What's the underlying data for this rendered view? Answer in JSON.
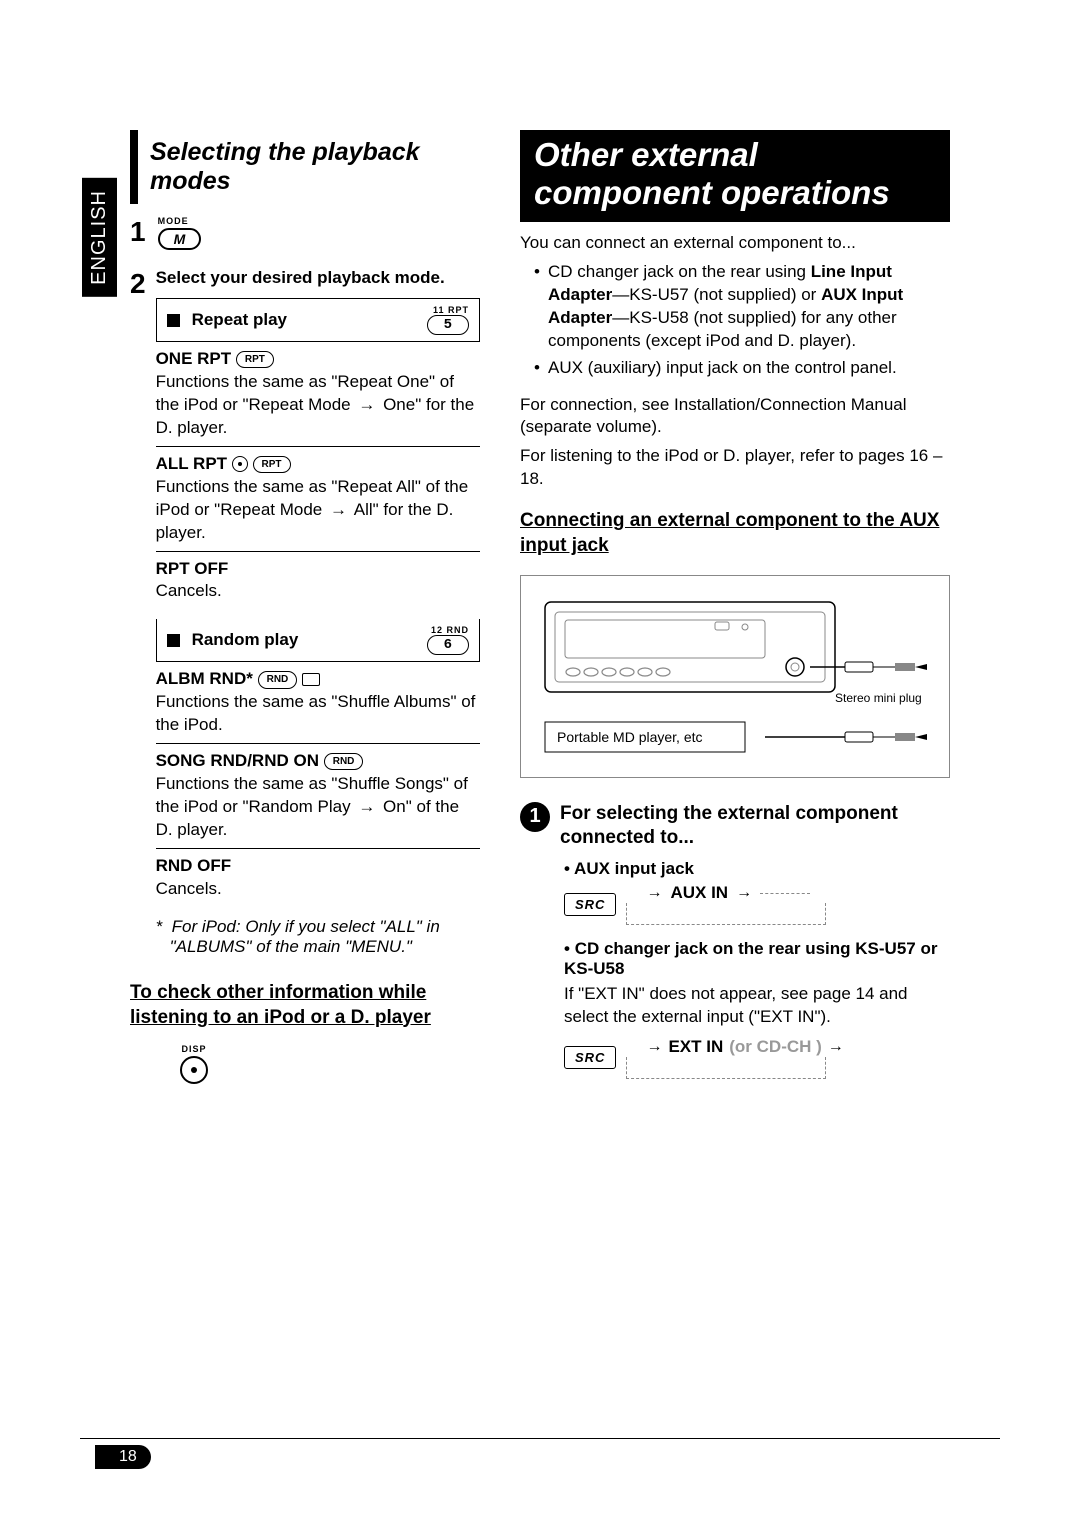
{
  "lang_tab": "ENGLISH",
  "page_number": "18",
  "left": {
    "section_title": "Selecting the playback modes",
    "step1_num": "1",
    "mode_label": "MODE",
    "mode_btn": "M",
    "step2_num": "2",
    "step2_text": "Select your desired playback mode.",
    "repeat": {
      "label": "Repeat play",
      "disp_small": "11   RPT",
      "disp_num": "5"
    },
    "modes_repeat": [
      {
        "name": "ONE RPT",
        "tags": [
          "RPT"
        ],
        "desc_a": "Functions the same as \"Repeat One\" of the iPod or \"Repeat Mode",
        "desc_b": "One\" for the D. player."
      },
      {
        "name": "ALL RPT",
        "tags": [
          "DISC",
          "RPT"
        ],
        "desc_a": "Functions the same as \"Repeat All\" of the iPod or \"Repeat Mode",
        "desc_b": "All\" for the D. player."
      },
      {
        "name": "RPT OFF",
        "tags": [],
        "desc_a": "Cancels.",
        "desc_b": ""
      }
    ],
    "random": {
      "label": "Random play",
      "disp_small": "12   RND",
      "disp_num": "6"
    },
    "modes_random": [
      {
        "name": "ALBM RND*",
        "tags": [
          "RND",
          "FOLDER"
        ],
        "desc_a": "Functions the same as \"Shuffle Albums\" of the iPod.",
        "desc_b": ""
      },
      {
        "name": "SONG RND/RND ON",
        "tags": [
          "RND"
        ],
        "desc_a": "Functions the same as \"Shuffle Songs\" of the iPod or \"Random Play",
        "desc_b": "On\" of the D. player."
      },
      {
        "name": "RND OFF",
        "tags": [],
        "desc_a": "Cancels.",
        "desc_b": ""
      }
    ],
    "footnote": "For iPod: Only if you select \"ALL\" in \"ALBUMS\" of the main \"MENU.\"",
    "check_info_heading": "To check other information while listening to an iPod or a D. player",
    "disp_label": "DISP"
  },
  "right": {
    "title": "Other external component operations",
    "intro": "You can connect an external component to...",
    "bullets": [
      "CD changer jack on the rear using Line Input Adapter—KS-U57 (not supplied) or AUX Input Adapter—KS-U58 (not supplied) for any other components (except iPod and D. player).",
      "AUX (auxiliary) input jack on the control panel."
    ],
    "connection_text": "For connection, see Installation/Connection Manual (separate volume).",
    "listening_text": "For listening to the iPod or D. player, refer to pages 16 – 18.",
    "aux_heading": "Connecting an external component to the AUX input jack",
    "diagram": {
      "stereo_plug": "Stereo mini plug",
      "md_player": "Portable MD player, etc"
    },
    "step1_text": "For selecting the external component connected to...",
    "aux_jack_label": "AUX input jack",
    "src_label": "SRC",
    "aux_in": "AUX IN",
    "cd_changer_label": "CD changer jack on the rear using KS-U57 or KS-U58",
    "ext_in_note": "If \"EXT IN\" does not appear, see page 14 and select the external input (\"EXT IN\").",
    "ext_in": "EXT IN",
    "cd_ch": "(or  CD-CH )"
  }
}
